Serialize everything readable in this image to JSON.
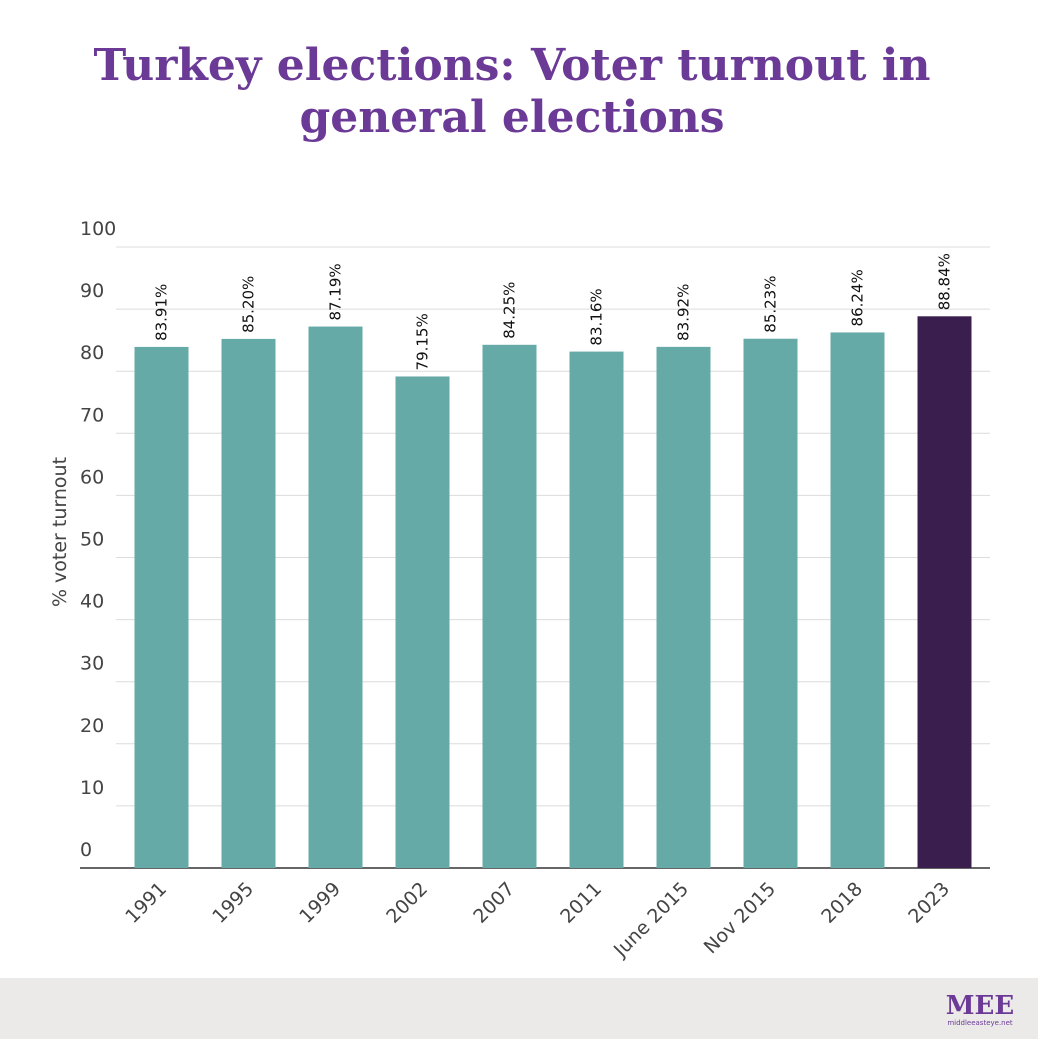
{
  "chart_data": {
    "type": "bar",
    "title": "Turkey elections: Voter turnout in general elections",
    "y_label": "% voter turnout",
    "categories": [
      "1991",
      "1995",
      "1999",
      "2002",
      "2007",
      "2011",
      "June 2015",
      "Nov 2015",
      "2018",
      "2023"
    ],
    "values": [
      83.91,
      85.2,
      87.19,
      79.15,
      84.25,
      83.16,
      83.92,
      85.23,
      86.24,
      88.84
    ],
    "value_labels": [
      "83.91%",
      "85.20%",
      "87.19%",
      "79.15%",
      "84.25%",
      "83.16%",
      "83.92%",
      "85.23%",
      "86.24%",
      "88.84%"
    ],
    "colors": [
      "#66aaa7",
      "#66aaa7",
      "#66aaa7",
      "#66aaa7",
      "#66aaa7",
      "#66aaa7",
      "#66aaa7",
      "#66aaa7",
      "#66aaa7",
      "#3a1f4e"
    ],
    "ylim": [
      0,
      100
    ],
    "yticks": [
      0,
      10,
      20,
      30,
      40,
      50,
      60,
      70,
      80,
      90,
      100
    ],
    "grid": true
  },
  "footer": {
    "logo": "MEE",
    "site": "middleeasteye.net"
  }
}
